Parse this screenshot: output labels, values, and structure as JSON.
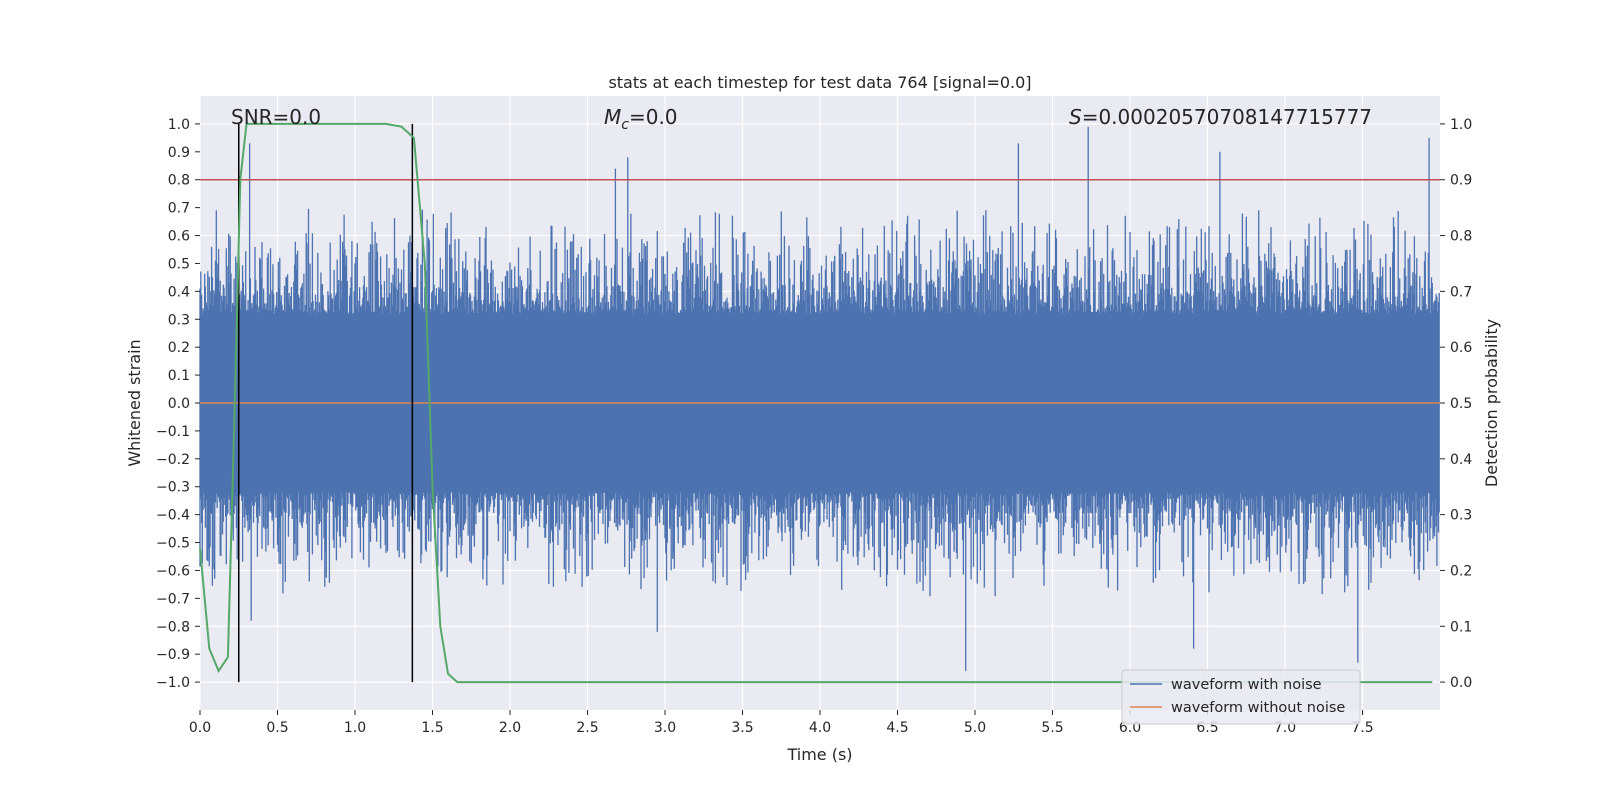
{
  "chart_data": {
    "type": "line",
    "title": "stats at each timestep for test data 764 [signal=0.0]",
    "xlabel": "Time (s)",
    "ylabel_left": "Whitened strain",
    "ylabel_right": "Detection probability",
    "xlim": [
      0.0,
      8.0
    ],
    "ylim_left": [
      -1.1,
      1.1
    ],
    "ylim_right": [
      -0.05,
      1.05
    ],
    "x_ticks": [
      "0.0",
      "0.5",
      "1.0",
      "1.5",
      "2.0",
      "2.5",
      "3.0",
      "3.5",
      "4.0",
      "4.5",
      "5.0",
      "5.5",
      "6.0",
      "6.5",
      "7.0",
      "7.5"
    ],
    "y_ticks_left": [
      "1.0",
      "0.9",
      "0.8",
      "0.7",
      "0.6",
      "0.5",
      "0.4",
      "0.3",
      "0.2",
      "0.1",
      "0.0",
      "−0.1",
      "−0.2",
      "−0.3",
      "−0.4",
      "−0.5",
      "−0.6",
      "−0.7",
      "−0.8",
      "−0.9",
      "−1.0"
    ],
    "y_ticks_right": [
      "1.0",
      "0.9",
      "0.8",
      "0.7",
      "0.6",
      "0.5",
      "0.4",
      "0.3",
      "0.2",
      "0.1",
      "0.0"
    ],
    "grid": true,
    "legend_position": "lower-right",
    "annotations": {
      "snr": "SNR=0.0",
      "mc_symbol": "M",
      "mc_sub": "c",
      "mc_value": "=0.0",
      "s_symbol": "S",
      "s_value": "=0.00020570708147715777"
    },
    "series": [
      {
        "name": "waveform with noise",
        "axis": "left",
        "color": "#4c72b0",
        "description_range": [
          -1.0,
          1.0
        ],
        "peaks": [
          {
            "x": 0.32,
            "y": 0.93
          },
          {
            "x": 2.68,
            "y": 0.84
          },
          {
            "x": 2.76,
            "y": 0.88
          },
          {
            "x": 5.28,
            "y": 0.93
          },
          {
            "x": 5.73,
            "y": 0.99
          },
          {
            "x": 6.58,
            "y": 0.9
          },
          {
            "x": 7.93,
            "y": 0.95
          },
          {
            "x": 0.33,
            "y": -0.78
          },
          {
            "x": 2.95,
            "y": -0.82
          },
          {
            "x": 4.94,
            "y": -0.96
          },
          {
            "x": 6.41,
            "y": -0.88
          },
          {
            "x": 7.47,
            "y": -0.93
          }
        ]
      },
      {
        "name": "waveform without noise",
        "axis": "left",
        "color": "#dd8452",
        "x": [
          0.0,
          8.0
        ],
        "y": [
          0.0,
          0.0
        ]
      },
      {
        "name": "",
        "axis": "right",
        "color": "#55a868",
        "x": [
          0.0,
          0.06,
          0.12,
          0.18,
          0.22,
          0.26,
          0.3,
          0.4,
          0.6,
          0.8,
          1.0,
          1.2,
          1.3,
          1.38,
          1.45,
          1.5,
          1.55,
          1.6,
          1.66,
          1.75,
          2.0,
          3.0,
          4.0,
          5.0,
          6.0,
          7.0,
          7.95
        ],
        "y": [
          0.24,
          0.06,
          0.02,
          0.045,
          0.45,
          0.9,
          1.0,
          1.0,
          1.0,
          1.0,
          1.0,
          1.0,
          0.995,
          0.975,
          0.75,
          0.35,
          0.1,
          0.015,
          0.0,
          0.0,
          0.0,
          0.0,
          0.0,
          0.0,
          0.0,
          0.0,
          0.0
        ]
      }
    ],
    "threshold_line": {
      "axis": "right",
      "y": 0.9,
      "color": "#c44e52"
    },
    "event_markers": {
      "x": [
        0.25,
        1.37
      ],
      "y_range": [
        -1.0,
        1.0
      ],
      "color": "#000000"
    }
  },
  "legend": {
    "items": [
      {
        "label": "waveform with noise",
        "color": "#4c72b0"
      },
      {
        "label": "waveform without noise",
        "color": "#dd8452"
      }
    ]
  }
}
